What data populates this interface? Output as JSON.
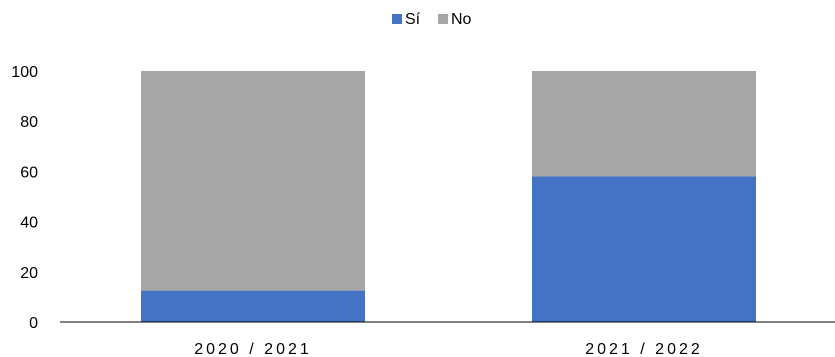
{
  "chart_data": {
    "type": "bar",
    "stacked": true,
    "categories": [
      "2020 / 2021",
      "2021 / 2022"
    ],
    "series": [
      {
        "name": "Sí",
        "values": [
          12.5,
          58
        ],
        "color": "#4472c4"
      },
      {
        "name": "No",
        "values": [
          87.5,
          42
        ],
        "color": "#a6a6a6"
      }
    ],
    "yticks": [
      "0",
      "20",
      "40",
      "60",
      "80",
      "100"
    ],
    "ylim": [
      0,
      100
    ],
    "grid": false,
    "legend": "top-center"
  }
}
